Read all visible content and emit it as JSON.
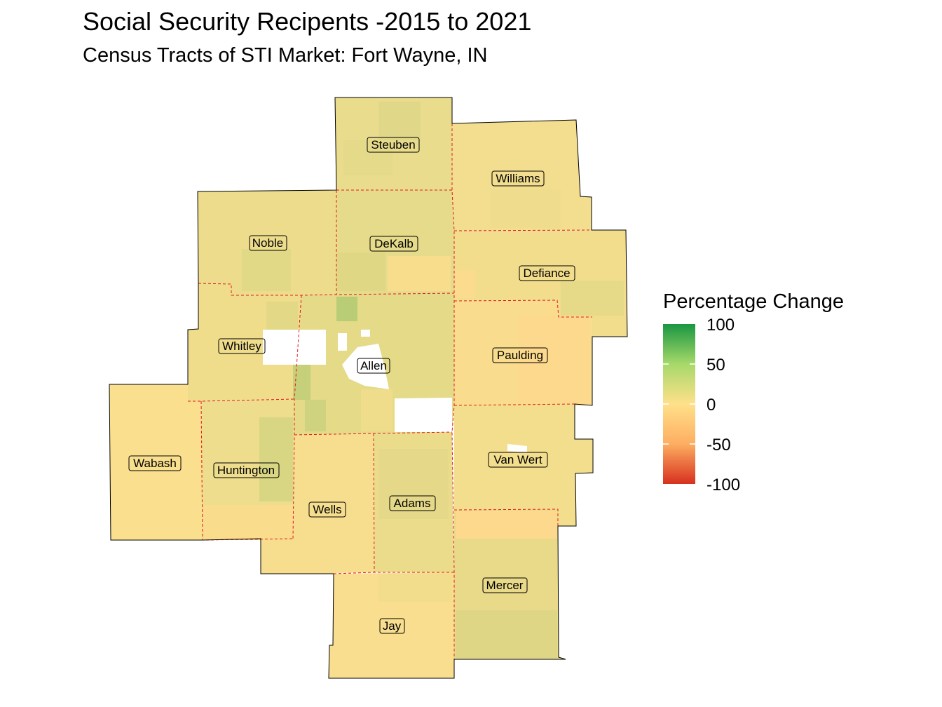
{
  "title": "Social Security Recipents -2015 to 2021",
  "subtitle": "Census Tracts of STI Market: Fort Wayne, IN",
  "legend": {
    "title": "Percentage Change",
    "ticks": [
      {
        "label": "100",
        "value": 100
      },
      {
        "label": "50",
        "value": 50
      },
      {
        "label": "0",
        "value": 0
      },
      {
        "label": "-50",
        "value": -50
      },
      {
        "label": "-100",
        "value": -100
      }
    ],
    "colors": {
      "high": "#1a9641",
      "mid_high": "#a6d96a",
      "mid": "#ffe08a",
      "mid_low": "#fdae61",
      "low": "#d7301f"
    }
  },
  "colors": {
    "boundary_outline": "#000000",
    "county_border": "#e31a1c",
    "no_data": "#ffffff"
  },
  "counties": [
    {
      "name": "Steuben",
      "fill": "#e9dc8c"
    },
    {
      "name": "Williams",
      "fill": "#f2de8e"
    },
    {
      "name": "Noble",
      "fill": "#ecdc8c"
    },
    {
      "name": "DeKalb",
      "fill": "#e6db8a"
    },
    {
      "name": "Defiance",
      "fill": "#f1dd8c"
    },
    {
      "name": "Whitley",
      "fill": "#efdd8c"
    },
    {
      "name": "Allen",
      "fill": "#e4da88"
    },
    {
      "name": "Paulding",
      "fill": "#f9dc8d"
    },
    {
      "name": "Wabash",
      "fill": "#f9df8e"
    },
    {
      "name": "Huntington",
      "fill": "#eedd8c"
    },
    {
      "name": "Wells",
      "fill": "#f7de8e"
    },
    {
      "name": "Adams",
      "fill": "#ebdc8b"
    },
    {
      "name": "Van Wert",
      "fill": "#f3de8d"
    },
    {
      "name": "Jay",
      "fill": "#f8de8e"
    },
    {
      "name": "Mercer",
      "fill": "#e8da89"
    }
  ]
}
